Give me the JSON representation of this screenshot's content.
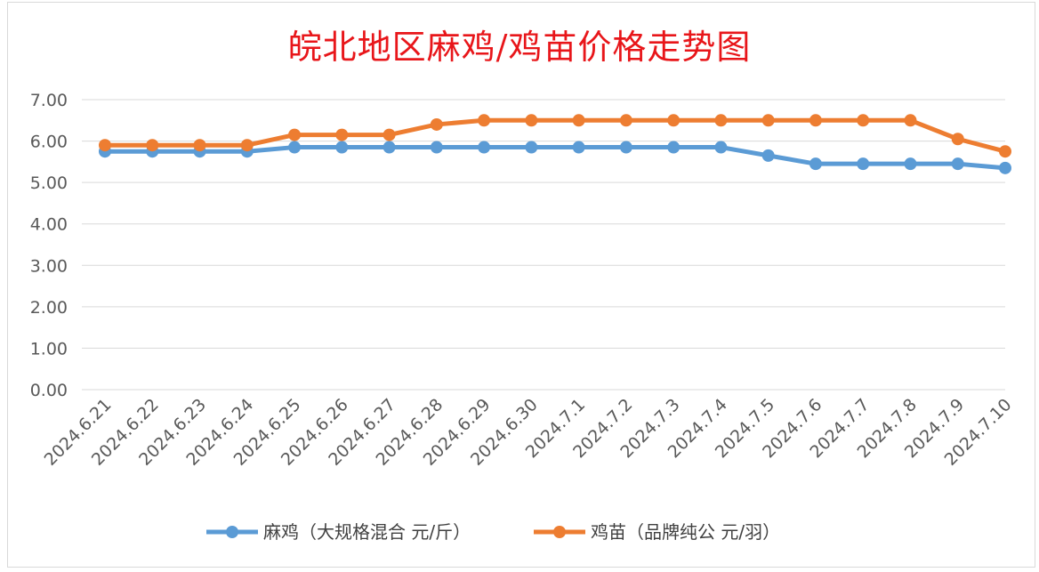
{
  "chart_data": {
    "type": "line",
    "title": "皖北地区麻鸡/鸡苗价格走势图",
    "categories": [
      "2024.6.21",
      "2024.6.22",
      "2024.6.23",
      "2024.6.24",
      "2024.6.25",
      "2024.6.26",
      "2024.6.27",
      "2024.6.28",
      "2024.6.29",
      "2024.6.30",
      "2024.7.1",
      "2024.7.2",
      "2024.7.3",
      "2024.7.4",
      "2024.7.5",
      "2024.7.6",
      "2024.7.7",
      "2024.7.8",
      "2024.7.9",
      "2024.7.10"
    ],
    "series": [
      {
        "name": "麻鸡（大规格混合 元/斤）",
        "color": "#5b9bd5",
        "values": [
          5.75,
          5.75,
          5.75,
          5.75,
          5.85,
          5.85,
          5.85,
          5.85,
          5.85,
          5.85,
          5.85,
          5.85,
          5.85,
          5.85,
          5.65,
          5.45,
          5.45,
          5.45,
          5.45,
          5.35
        ]
      },
      {
        "name": "鸡苗（品牌纯公 元/羽）",
        "color": "#ed7d31",
        "values": [
          5.9,
          5.9,
          5.9,
          5.9,
          6.15,
          6.15,
          6.15,
          6.4,
          6.5,
          6.5,
          6.5,
          6.5,
          6.5,
          6.5,
          6.5,
          6.5,
          6.5,
          6.5,
          6.05,
          5.75
        ]
      }
    ],
    "ylim": [
      0,
      7
    ],
    "yticks": [
      "0.00",
      "1.00",
      "2.00",
      "3.00",
      "4.00",
      "5.00",
      "6.00",
      "7.00"
    ],
    "grid": true,
    "legend_position": "bottom"
  }
}
